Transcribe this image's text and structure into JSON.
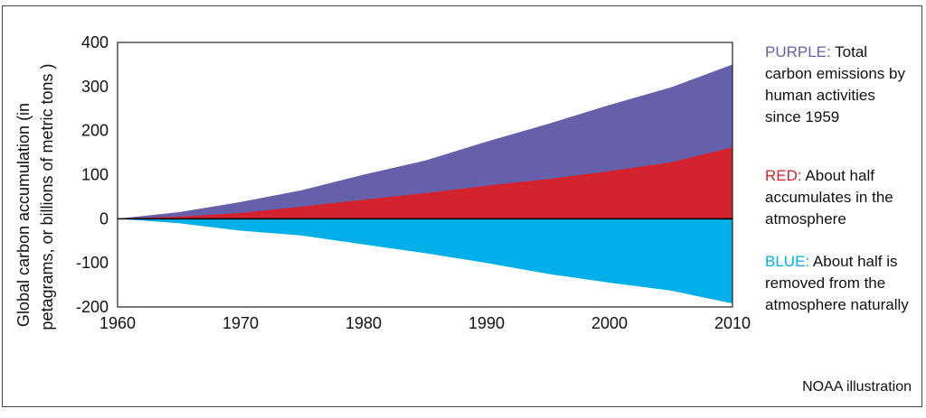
{
  "chart_data": {
    "type": "area",
    "title": "",
    "xlabel": "",
    "ylabel_line1": "Global carbon accumulation (in",
    "ylabel_line2": "petagrams, or billions of metric tons )",
    "xlim": [
      1960,
      2010
    ],
    "ylim": [
      -200,
      400
    ],
    "x_ticks": [
      1960,
      1970,
      1980,
      1990,
      2000,
      2010
    ],
    "y_ticks": [
      400,
      300,
      200,
      100,
      0,
      -100,
      -200
    ],
    "x": [
      1960,
      1965,
      1970,
      1975,
      1980,
      1985,
      1990,
      1995,
      2000,
      2005,
      2010
    ],
    "series": [
      {
        "name": "Total carbon emissions",
        "color": "#6660aa",
        "values": [
          0,
          15,
          38,
          65,
          100,
          132,
          175,
          215,
          258,
          298,
          350
        ]
      },
      {
        "name": "Accumulates in the atmosphere",
        "color": "#d3232f",
        "values": [
          0,
          5,
          13,
          28,
          43,
          58,
          75,
          90,
          108,
          128,
          162
        ]
      },
      {
        "name": "Removed from the atmosphere naturally",
        "color": "#00aee8",
        "values": [
          0,
          -10,
          -27,
          -38,
          -58,
          -78,
          -100,
          -125,
          -145,
          -163,
          -192
        ]
      }
    ]
  },
  "legend": {
    "purple": {
      "key": "PURPLE:",
      "text": " Total carbon emissions by human activities since 1959",
      "color": "#6660aa"
    },
    "red": {
      "key": "RED:",
      "text": " About half accumulates in the atmosphere",
      "color": "#d3232f"
    },
    "blue": {
      "key": "BLUE:",
      "text": " About half is removed from the atmosphere naturally",
      "color": "#00aee8"
    }
  },
  "credit": "NOAA illustration"
}
